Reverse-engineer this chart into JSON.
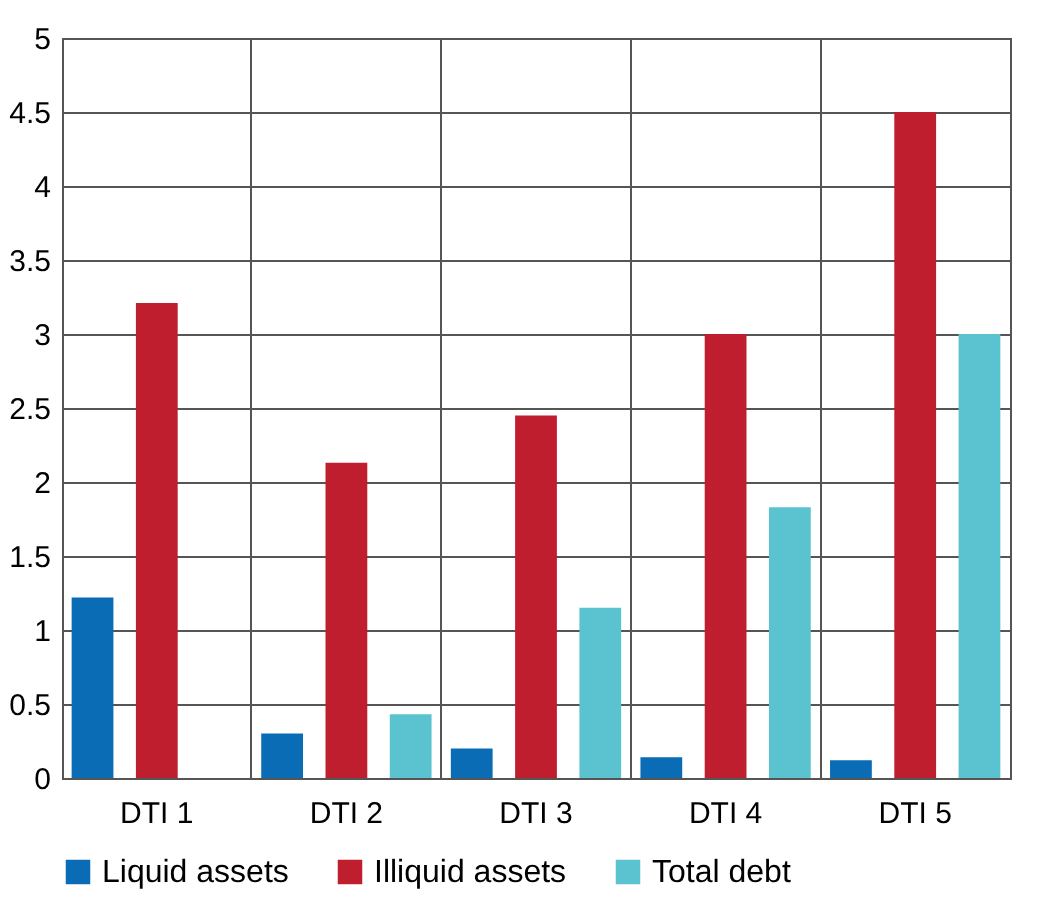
{
  "chart_data": {
    "type": "bar",
    "categories": [
      "DTI 1",
      "DTI 2",
      "DTI 3",
      "DTI 4",
      "DTI 5"
    ],
    "series": [
      {
        "name": "Liquid assets",
        "color": "#0a6cb5",
        "values": [
          1.22,
          0.3,
          0.2,
          0.14,
          0.12
        ]
      },
      {
        "name": "Illiquid assets",
        "color": "#be1e2d",
        "values": [
          3.21,
          2.13,
          2.45,
          3.0,
          4.5
        ]
      },
      {
        "name": "Total debt",
        "color": "#5bc3d0",
        "values": [
          null,
          0.43,
          1.15,
          1.83,
          3.0
        ]
      }
    ],
    "ylim": [
      0,
      5
    ],
    "yticks": [
      0,
      0.5,
      1,
      1.5,
      2,
      2.5,
      3,
      3.5,
      4,
      4.5,
      5
    ],
    "grid": true,
    "legend": "bottom"
  }
}
